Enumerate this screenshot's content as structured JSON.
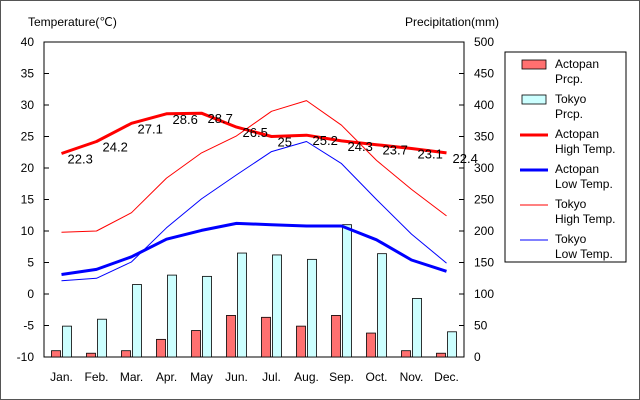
{
  "chart_data": {
    "type": "bar",
    "left_axis_title": "Temperature(℃)",
    "right_axis_title": "Precipitation(mm)",
    "categories": [
      "Jan.",
      "Feb.",
      "Mar.",
      "Apr.",
      "May",
      "Jun.",
      "Jul.",
      "Aug.",
      "Sep.",
      "Oct.",
      "Nov.",
      "Dec."
    ],
    "left_ylim": [
      -10,
      40
    ],
    "left_ticks": [
      "40",
      "35",
      "30",
      "25",
      "20",
      "15",
      "10",
      "5",
      "0",
      "-5",
      "-10"
    ],
    "right_ylim": [
      0,
      500
    ],
    "right_ticks": [
      "500",
      "450",
      "400",
      "350",
      "300",
      "250",
      "200",
      "150",
      "100",
      "50",
      "0"
    ],
    "grid": false,
    "legend_position": "right",
    "bar_series": [
      {
        "name": "Actopan\nPrcp.",
        "color": "#ff7070",
        "values": [
          10,
          6,
          10,
          28,
          42,
          66,
          63,
          49,
          66,
          38,
          10,
          6
        ]
      },
      {
        "name": "Tokyo\nPrcp.",
        "color": "#ccffff",
        "values": [
          49,
          60,
          115,
          130,
          128,
          165,
          162,
          155,
          210,
          164,
          93,
          40
        ]
      }
    ],
    "line_series": [
      {
        "name": "Actopan\nHigh Temp.",
        "color": "#ff0000",
        "width": 3,
        "values": [
          22.3,
          24.2,
          27.1,
          28.6,
          28.7,
          26.5,
          25,
          25.2,
          24.3,
          23.7,
          23.1,
          22.4
        ],
        "labels": [
          "22.3",
          "24.2",
          "27.1",
          "28.6",
          "28.7",
          "26.5",
          "25",
          "25.2",
          "24.3",
          "23.7",
          "23.1",
          "22.4"
        ]
      },
      {
        "name": "Actopan\nLow Temp.",
        "color": "#0000ff",
        "width": 3,
        "values": [
          3.1,
          3.9,
          5.9,
          8.7,
          10.1,
          11.2,
          11.0,
          10.8,
          10.8,
          8.6,
          5.4,
          3.6
        ]
      },
      {
        "name": "Tokyo\nHigh Temp.",
        "color": "#ff0000",
        "width": 1,
        "values": [
          9.8,
          10.0,
          12.9,
          18.4,
          22.4,
          25.1,
          29.0,
          30.7,
          26.8,
          21.2,
          16.6,
          12.4
        ]
      },
      {
        "name": "Tokyo\nLow Temp.",
        "color": "#0000ff",
        "width": 1,
        "values": [
          2.1,
          2.5,
          5.1,
          10.5,
          15.1,
          18.9,
          22.6,
          24.2,
          20.7,
          15.0,
          9.5,
          4.9
        ]
      }
    ]
  }
}
